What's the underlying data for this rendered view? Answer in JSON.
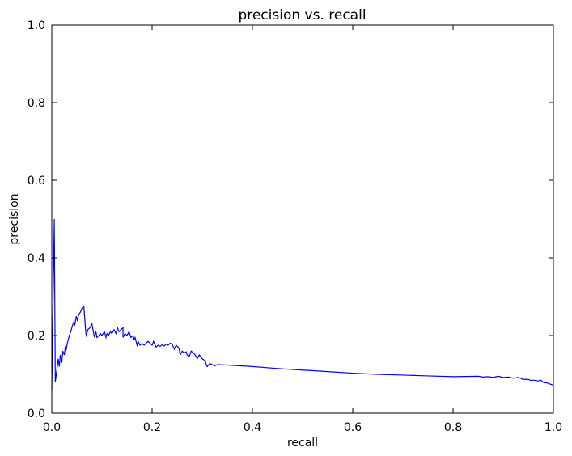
{
  "chart_data": {
    "type": "line",
    "title": "precision vs. recall",
    "xlabel": "recall",
    "ylabel": "precision",
    "xlim": [
      0.0,
      1.0
    ],
    "ylim": [
      0.0,
      1.0
    ],
    "grid": false,
    "line_color": "#0000ff",
    "xticks": [
      0.0,
      0.2,
      0.4,
      0.6,
      0.8,
      1.0
    ],
    "xtick_labels": [
      "0.0",
      "0.2",
      "0.4",
      "0.6",
      "0.8",
      "1.0"
    ],
    "yticks": [
      0.0,
      0.2,
      0.4,
      0.6,
      0.8,
      1.0
    ],
    "ytick_labels": [
      "0.0",
      "0.2",
      "0.4",
      "0.6",
      "0.8",
      "1.0"
    ],
    "series": [
      {
        "x": [
          0.0,
          0.005,
          0.006,
          0.007,
          0.009,
          0.013,
          0.015,
          0.017,
          0.02,
          0.022,
          0.025,
          0.027,
          0.029,
          0.031,
          0.033,
          0.035,
          0.038,
          0.041,
          0.044,
          0.046,
          0.049,
          0.051,
          0.054,
          0.057,
          0.06,
          0.064,
          0.068,
          0.069,
          0.072,
          0.076,
          0.08,
          0.085,
          0.088,
          0.09,
          0.094,
          0.097,
          0.1,
          0.105,
          0.108,
          0.11,
          0.113,
          0.117,
          0.12,
          0.124,
          0.128,
          0.131,
          0.134,
          0.138,
          0.142,
          0.142,
          0.146,
          0.15,
          0.154,
          0.158,
          0.162,
          0.164,
          0.166,
          0.17,
          0.172,
          0.176,
          0.18,
          0.184,
          0.188,
          0.192,
          0.196,
          0.2,
          0.203,
          0.205,
          0.208,
          0.212,
          0.216,
          0.22,
          0.224,
          0.228,
          0.232,
          0.236,
          0.24,
          0.244,
          0.248,
          0.252,
          0.254,
          0.256,
          0.26,
          0.264,
          0.268,
          0.27,
          0.274,
          0.278,
          0.282,
          0.286,
          0.29,
          0.292,
          0.294,
          0.3,
          0.306,
          0.308,
          0.31,
          0.315,
          0.32,
          0.325,
          0.33,
          0.35,
          0.4,
          0.45,
          0.5,
          0.55,
          0.6,
          0.65,
          0.7,
          0.75,
          0.8,
          0.85,
          0.86,
          0.87,
          0.88,
          0.89,
          0.9,
          0.91,
          0.92,
          0.93,
          0.94,
          0.95,
          0.955,
          0.96,
          0.97,
          0.975,
          0.98,
          0.985,
          0.99,
          0.995,
          1.0
        ],
        "y": [
          0.06,
          0.5,
          0.3,
          0.08,
          0.1,
          0.14,
          0.12,
          0.15,
          0.13,
          0.16,
          0.15,
          0.17,
          0.165,
          0.18,
          0.19,
          0.2,
          0.21,
          0.225,
          0.235,
          0.228,
          0.25,
          0.24,
          0.255,
          0.26,
          0.27,
          0.275,
          0.205,
          0.2,
          0.215,
          0.22,
          0.23,
          0.195,
          0.21,
          0.195,
          0.2,
          0.205,
          0.2,
          0.21,
          0.195,
          0.205,
          0.2,
          0.21,
          0.205,
          0.215,
          0.205,
          0.22,
          0.21,
          0.215,
          0.22,
          0.195,
          0.205,
          0.2,
          0.21,
          0.195,
          0.2,
          0.19,
          0.195,
          0.175,
          0.185,
          0.175,
          0.18,
          0.175,
          0.18,
          0.185,
          0.18,
          0.175,
          0.185,
          0.178,
          0.17,
          0.175,
          0.172,
          0.176,
          0.173,
          0.178,
          0.175,
          0.18,
          0.178,
          0.165,
          0.175,
          0.17,
          0.165,
          0.15,
          0.16,
          0.155,
          0.158,
          0.15,
          0.145,
          0.16,
          0.155,
          0.15,
          0.14,
          0.145,
          0.15,
          0.14,
          0.135,
          0.125,
          0.12,
          0.128,
          0.125,
          0.122,
          0.125,
          0.124,
          0.12,
          0.115,
          0.111,
          0.107,
          0.103,
          0.1,
          0.098,
          0.096,
          0.094,
          0.095,
          0.093,
          0.094,
          0.092,
          0.095,
          0.092,
          0.093,
          0.09,
          0.092,
          0.087,
          0.087,
          0.084,
          0.085,
          0.083,
          0.085,
          0.079,
          0.078,
          0.077,
          0.074,
          0.072
        ]
      }
    ]
  }
}
